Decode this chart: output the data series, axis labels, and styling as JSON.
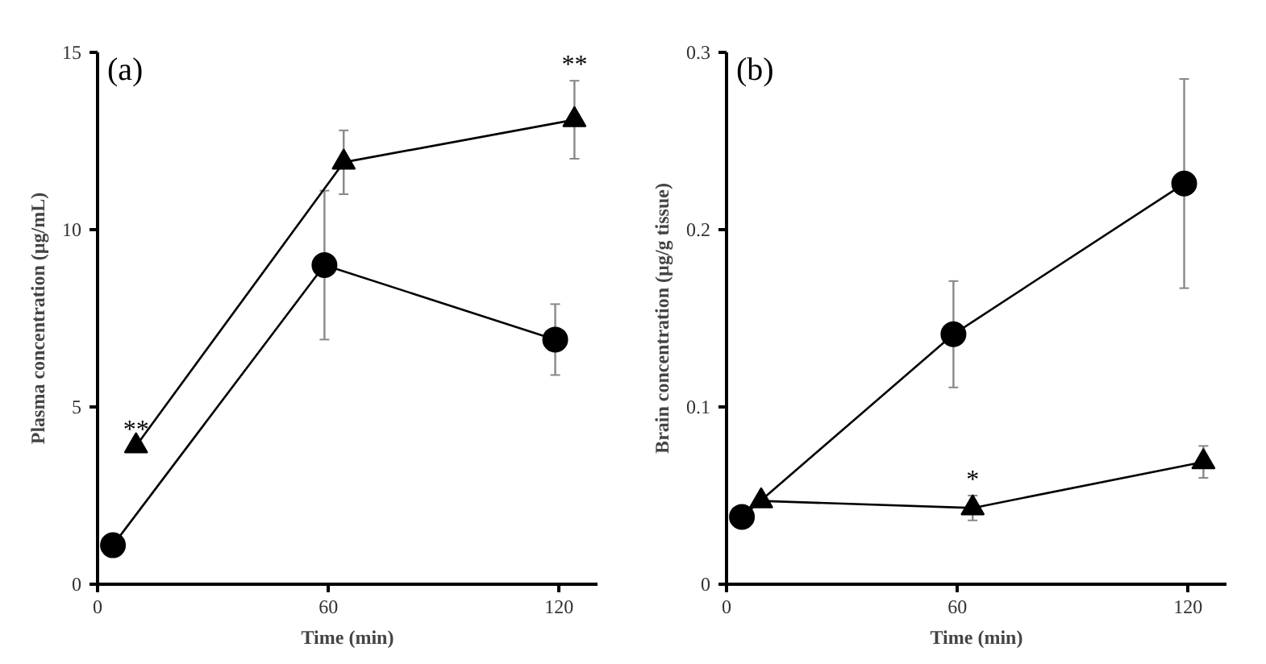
{
  "chart_data": [
    {
      "type": "line",
      "xlabel": "Time (min)",
      "ylabel": "Plasma concentration (µg/mL)",
      "xlim": [
        0,
        130
      ],
      "ylim": [
        0,
        15
      ],
      "xticks": [
        0,
        60,
        120
      ],
      "yticks": [
        0,
        5,
        10,
        15
      ],
      "grid": false,
      "annotations": [
        "(a)",
        {
          "text": "**",
          "x": 10,
          "y": 3.9
        },
        {
          "text": "**",
          "x": 124,
          "y": 13.1
        }
      ],
      "series": [
        {
          "color": "#000000",
          "marker": "circle",
          "x": [
            4,
            59,
            119
          ],
          "values": [
            1.1,
            9.0,
            6.9
          ],
          "errors": [
            null,
            2.1,
            1.0
          ]
        },
        {
          "color": "#000000",
          "marker": "triangle",
          "x": [
            10,
            64,
            124
          ],
          "values": [
            3.9,
            11.9,
            13.1
          ],
          "errors": [
            null,
            0.9,
            1.1
          ]
        }
      ]
    },
    {
      "type": "line",
      "xlabel": "Time (min)",
      "ylabel": "Brain concentration (µg/g tissue)",
      "xlim": [
        0,
        130
      ],
      "ylim": [
        0,
        0.3
      ],
      "xticks": [
        0,
        60,
        120
      ],
      "yticks": [
        0,
        0.1,
        0.2,
        0.3
      ],
      "grid": false,
      "annotations": [
        "(b)",
        {
          "text": "*",
          "x": 64,
          "y": 0.043
        }
      ],
      "series": [
        {
          "color": "#000000",
          "marker": "circle",
          "x": [
            4,
            59,
            119
          ],
          "values": [
            0.038,
            0.141,
            0.226
          ],
          "errors": [
            null,
            0.03,
            0.059
          ]
        },
        {
          "color": "#000000",
          "marker": "triangle",
          "x": [
            9,
            64,
            124
          ],
          "values": [
            0.047,
            0.043,
            0.069
          ],
          "errors": [
            null,
            0.007,
            0.009
          ]
        }
      ]
    }
  ]
}
